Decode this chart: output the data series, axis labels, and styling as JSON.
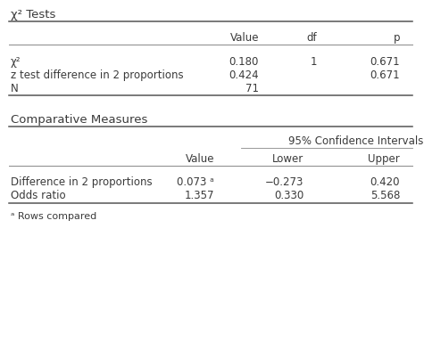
{
  "title1": "χ² Tests",
  "table1_col_headers": [
    "Value",
    "df",
    "p"
  ],
  "table1_rows": [
    [
      "χ²",
      "0.180",
      "1",
      "0.671"
    ],
    [
      "z test difference in 2 proportions",
      "0.424",
      "",
      "0.671"
    ],
    [
      "N",
      "71",
      "",
      ""
    ]
  ],
  "title2": "Comparative Measures",
  "ci_header": "95% Confidence Intervals",
  "table2_col_headers": [
    "Value",
    "Lower",
    "Upper"
  ],
  "table2_rows": [
    [
      "Difference in 2 proportions",
      "0.073 ᵃ",
      "−0.273",
      "0.420"
    ],
    [
      "Odds ratio",
      "1.357",
      "0.330",
      "5.568"
    ]
  ],
  "footnote": "ᵃ Rows compared",
  "bg_color": "#ffffff",
  "text_color": "#3a3a3a",
  "line_color": "#aaaaaa",
  "font_size": 8.5,
  "title_font_size": 9.5
}
